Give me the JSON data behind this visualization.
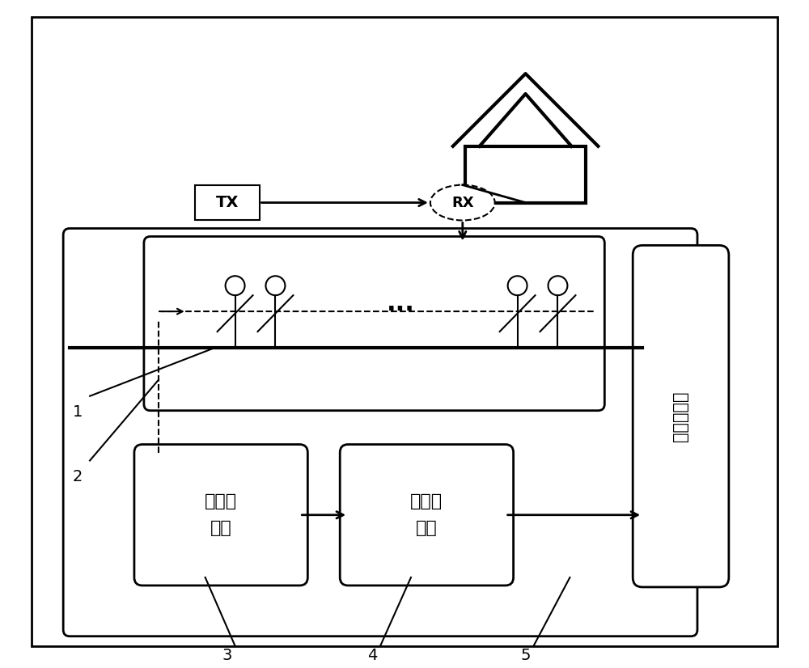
{
  "fig_width": 10.0,
  "fig_height": 8.26,
  "bg_color": "#ffffff",
  "line_color": "#000000",
  "controller1_label": "智能控\n制器",
  "controller2_label": "模糊控\n制器",
  "modem_label": "调制解调器",
  "tx_label": "TX",
  "rx_label": "RX",
  "label1": "1",
  "label2": "2",
  "label3": "3",
  "label4": "4",
  "label5": "5"
}
